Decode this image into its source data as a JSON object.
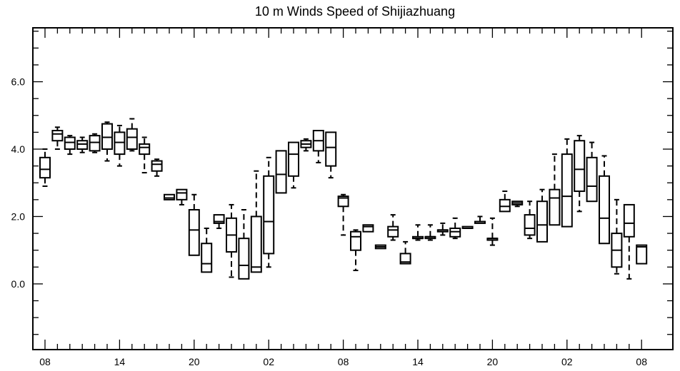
{
  "chart_data": {
    "type": "boxplot",
    "title": "10 m Winds Speed of Shijiazhuang",
    "xlabel": "",
    "ylabel": "",
    "ylim": [
      -1.95,
      7.6
    ],
    "y_major_ticks": [
      0.0,
      2.0,
      4.0,
      6.0
    ],
    "y_major_labels": [
      "0.0",
      "2.0",
      "4.0",
      "6.0"
    ],
    "x_major_labels": [
      "08",
      "14",
      "20",
      "02",
      "08",
      "14",
      "20",
      "02",
      "08"
    ],
    "x_major_index": [
      0,
      6,
      12,
      18,
      24,
      30,
      36,
      42,
      48
    ],
    "x_minor_count": 49,
    "grid": false,
    "legend": "none",
    "boxes": [
      {
        "min": 2.9,
        "q1": 3.15,
        "median": 3.4,
        "q3": 3.75,
        "max": 4.0
      },
      {
        "min": 4.0,
        "q1": 4.25,
        "median": 4.45,
        "q3": 4.55,
        "max": 4.65
      },
      {
        "min": 3.85,
        "q1": 4.0,
        "median": 4.2,
        "q3": 4.35,
        "max": 4.4
      },
      {
        "min": 3.9,
        "q1": 4.0,
        "median": 4.15,
        "q3": 4.25,
        "max": 4.35
      },
      {
        "min": 3.9,
        "q1": 3.95,
        "median": 4.2,
        "q3": 4.4,
        "max": 4.45
      },
      {
        "min": 3.65,
        "q1": 4.0,
        "median": 4.35,
        "q3": 4.75,
        "max": 4.8
      },
      {
        "min": 3.5,
        "q1": 3.85,
        "median": 4.2,
        "q3": 4.5,
        "max": 4.7
      },
      {
        "min": 3.95,
        "q1": 4.0,
        "median": 4.35,
        "q3": 4.6,
        "max": 4.9
      },
      {
        "min": 3.3,
        "q1": 3.85,
        "median": 4.05,
        "q3": 4.15,
        "max": 4.35
      },
      {
        "min": 3.2,
        "q1": 3.35,
        "median": 3.55,
        "q3": 3.65,
        "max": 3.7
      },
      {
        "min": 2.5,
        "q1": 2.5,
        "median": 2.55,
        "q3": 2.65,
        "max": 2.65
      },
      {
        "min": 2.35,
        "q1": 2.5,
        "median": 2.7,
        "q3": 2.8,
        "max": 2.8
      },
      {
        "min": 0.85,
        "q1": 0.85,
        "median": 1.6,
        "q3": 2.2,
        "max": 2.65
      },
      {
        "min": 0.35,
        "q1": 0.35,
        "median": 0.6,
        "q3": 1.2,
        "max": 1.65
      },
      {
        "min": 1.65,
        "q1": 1.8,
        "median": 1.85,
        "q3": 2.05,
        "max": 2.05
      },
      {
        "min": 0.2,
        "q1": 0.95,
        "median": 1.45,
        "q3": 1.95,
        "max": 2.35
      },
      {
        "min": 0.15,
        "q1": 0.15,
        "median": 0.55,
        "q3": 1.35,
        "max": 2.2
      },
      {
        "min": 0.35,
        "q1": 0.35,
        "median": 0.5,
        "q3": 2.0,
        "max": 3.35
      },
      {
        "min": 0.5,
        "q1": 0.9,
        "median": 1.85,
        "q3": 3.2,
        "max": 3.75
      },
      {
        "min": 2.7,
        "q1": 2.7,
        "median": 3.25,
        "q3": 3.95,
        "max": 3.95
      },
      {
        "min": 2.85,
        "q1": 3.2,
        "median": 3.85,
        "q3": 4.2,
        "max": 4.2
      },
      {
        "min": 3.95,
        "q1": 4.05,
        "median": 4.15,
        "q3": 4.25,
        "max": 4.3
      },
      {
        "min": 3.6,
        "q1": 3.95,
        "median": 4.25,
        "q3": 4.55,
        "max": 4.55
      },
      {
        "min": 3.15,
        "q1": 3.5,
        "median": 4.05,
        "q3": 4.5,
        "max": 4.5
      },
      {
        "min": 1.45,
        "q1": 2.3,
        "median": 2.55,
        "q3": 2.6,
        "max": 2.65
      },
      {
        "min": 0.4,
        "q1": 1.0,
        "median": 1.4,
        "q3": 1.55,
        "max": 1.6
      },
      {
        "min": 1.55,
        "q1": 1.55,
        "median": 1.7,
        "q3": 1.75,
        "max": 1.75
      },
      {
        "min": 1.05,
        "q1": 1.05,
        "median": 1.1,
        "q3": 1.15,
        "max": 1.15
      },
      {
        "min": 1.3,
        "q1": 1.4,
        "median": 1.6,
        "q3": 1.7,
        "max": 2.05
      },
      {
        "min": 0.6,
        "q1": 0.6,
        "median": 0.65,
        "q3": 0.9,
        "max": 1.25
      },
      {
        "min": 1.3,
        "q1": 1.35,
        "median": 1.35,
        "q3": 1.4,
        "max": 1.75
      },
      {
        "min": 1.3,
        "q1": 1.35,
        "median": 1.4,
        "q3": 1.4,
        "max": 1.75
      },
      {
        "min": 1.45,
        "q1": 1.55,
        "median": 1.6,
        "q3": 1.6,
        "max": 1.8
      },
      {
        "min": 1.35,
        "q1": 1.4,
        "median": 1.55,
        "q3": 1.65,
        "max": 1.95
      },
      {
        "min": 1.65,
        "q1": 1.65,
        "median": 1.65,
        "q3": 1.7,
        "max": 1.7
      },
      {
        "min": 1.8,
        "q1": 1.8,
        "median": 1.85,
        "q3": 1.85,
        "max": 2.0
      },
      {
        "min": 1.15,
        "q1": 1.3,
        "median": 1.35,
        "q3": 1.35,
        "max": 1.95
      },
      {
        "min": 2.15,
        "q1": 2.15,
        "median": 2.3,
        "q3": 2.5,
        "max": 2.75
      },
      {
        "min": 2.3,
        "q1": 2.35,
        "median": 2.4,
        "q3": 2.45,
        "max": 2.45
      },
      {
        "min": 1.35,
        "q1": 1.45,
        "median": 1.65,
        "q3": 2.05,
        "max": 2.45
      },
      {
        "min": 1.25,
        "q1": 1.25,
        "median": 1.75,
        "q3": 2.45,
        "max": 2.8
      },
      {
        "min": 1.75,
        "q1": 1.75,
        "median": 2.55,
        "q3": 2.8,
        "max": 3.85
      },
      {
        "min": 1.7,
        "q1": 1.7,
        "median": 2.6,
        "q3": 3.85,
        "max": 4.3
      },
      {
        "min": 2.15,
        "q1": 2.75,
        "median": 3.4,
        "q3": 4.25,
        "max": 4.4
      },
      {
        "min": 2.45,
        "q1": 2.45,
        "median": 2.9,
        "q3": 3.75,
        "max": 4.2
      },
      {
        "min": 1.2,
        "q1": 1.2,
        "median": 1.95,
        "q3": 3.2,
        "max": 3.8
      },
      {
        "min": 0.3,
        "q1": 0.5,
        "median": 1.0,
        "q3": 1.5,
        "max": 2.5
      },
      {
        "min": 0.15,
        "q1": 1.4,
        "median": 1.8,
        "q3": 2.35,
        "max": 2.35
      },
      {
        "min": 0.6,
        "q1": 0.6,
        "median": 1.1,
        "q3": 1.15,
        "max": 1.15
      }
    ]
  }
}
